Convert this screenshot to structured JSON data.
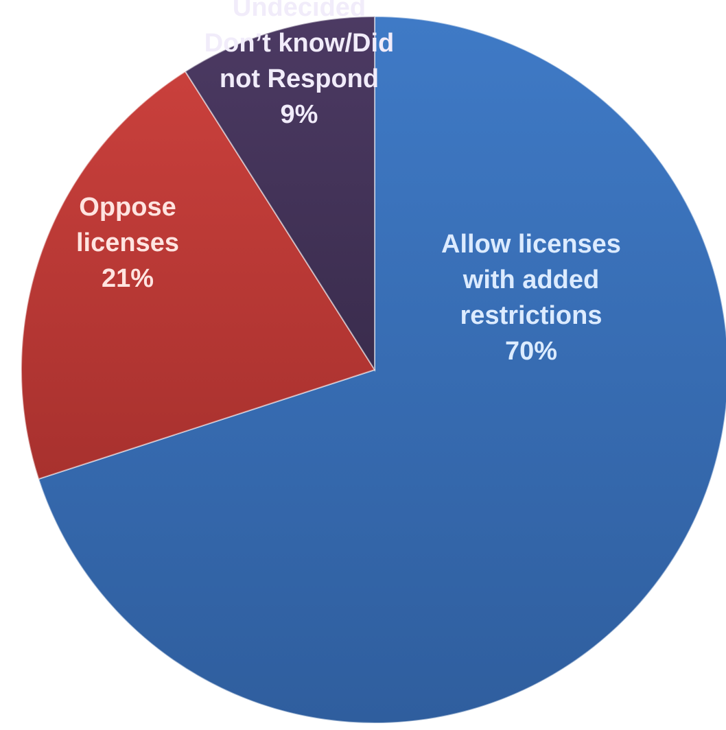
{
  "chart_data": {
    "type": "pie",
    "start_angle_deg": 0,
    "direction": "clockwise",
    "legend": "none",
    "slices": [
      {
        "label_lines": [
          "Allow licenses",
          "with added",
          "restrictions"
        ],
        "value": 70,
        "value_label": "70%",
        "color": "#3F7AC6",
        "color_dark": "#2F5E9E",
        "label_color": "#DCEBFF"
      },
      {
        "label_lines": [
          "Oppose",
          "licenses"
        ],
        "value": 21,
        "value_label": "21%",
        "color": "#C9403C",
        "color_dark": "#A8312E",
        "label_color": "#FFE4E0"
      },
      {
        "label_lines": [
          "Undecided",
          "Don’t know/Did",
          "not Respond"
        ],
        "value": 9,
        "value_label": "9%",
        "color": "#4C3A63",
        "color_dark": "#3A2C4D",
        "label_color": "#F1ECFA"
      }
    ]
  }
}
